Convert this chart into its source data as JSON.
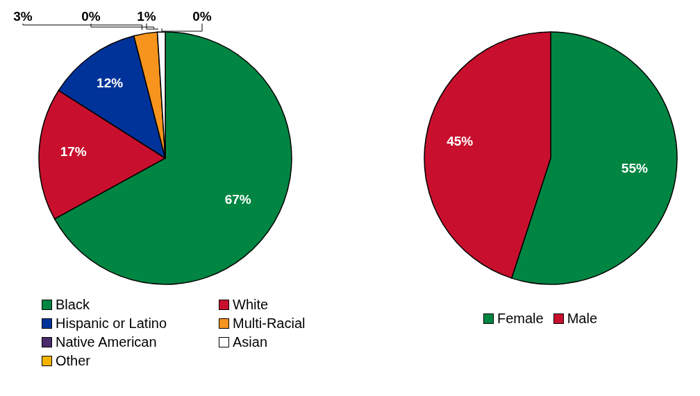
{
  "chart_data": [
    {
      "type": "pie",
      "categories": [
        "Black",
        "White",
        "Hispanic or Latino",
        "Multi-Racial",
        "Native American",
        "Asian",
        "Other"
      ],
      "values": [
        67,
        17,
        12,
        3,
        0,
        1,
        0
      ],
      "value_labels": [
        "67%",
        "17%",
        "12%",
        "3%",
        "0%",
        "1%",
        "0%"
      ],
      "colors": [
        "#008542",
        "#c8102e",
        "#003399",
        "#f7941d",
        "#4b2c6b",
        "#ffffff",
        "#f2b400"
      ],
      "legend": "bottom"
    },
    {
      "type": "pie",
      "categories": [
        "Female",
        "Male"
      ],
      "values": [
        55,
        45
      ],
      "value_labels": [
        "55%",
        "45%"
      ],
      "colors": [
        "#008542",
        "#c8102e"
      ],
      "legend": "bottom"
    }
  ]
}
